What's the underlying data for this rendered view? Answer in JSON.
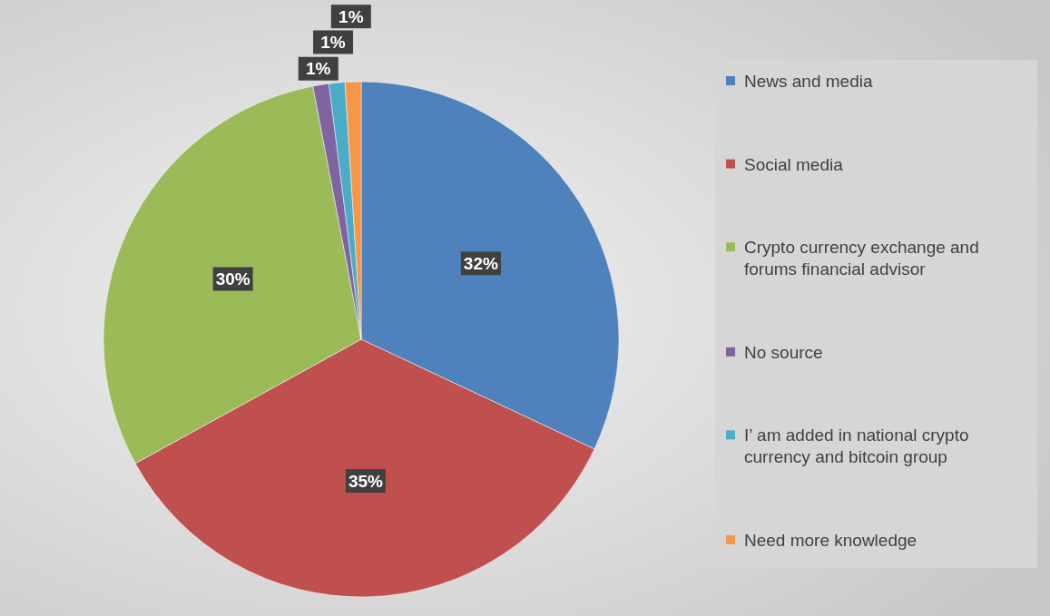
{
  "chart_data": {
    "type": "pie",
    "categories": [
      "News and media",
      "Social media",
      "Crypto currency exchange and forums financial advisor",
      "No source",
      "I’ am added in national crypto currency and bitcoin group",
      "Need more knowledge"
    ],
    "values": [
      32,
      35,
      30,
      1,
      1,
      1
    ],
    "colors": [
      "#4f81bd",
      "#c0504d",
      "#9bbb59",
      "#8064a2",
      "#4bacc6",
      "#f79646"
    ],
    "value_labels": [
      "32%",
      "35%",
      "30%",
      "1%",
      "1%",
      "1%"
    ],
    "legend": "right"
  }
}
